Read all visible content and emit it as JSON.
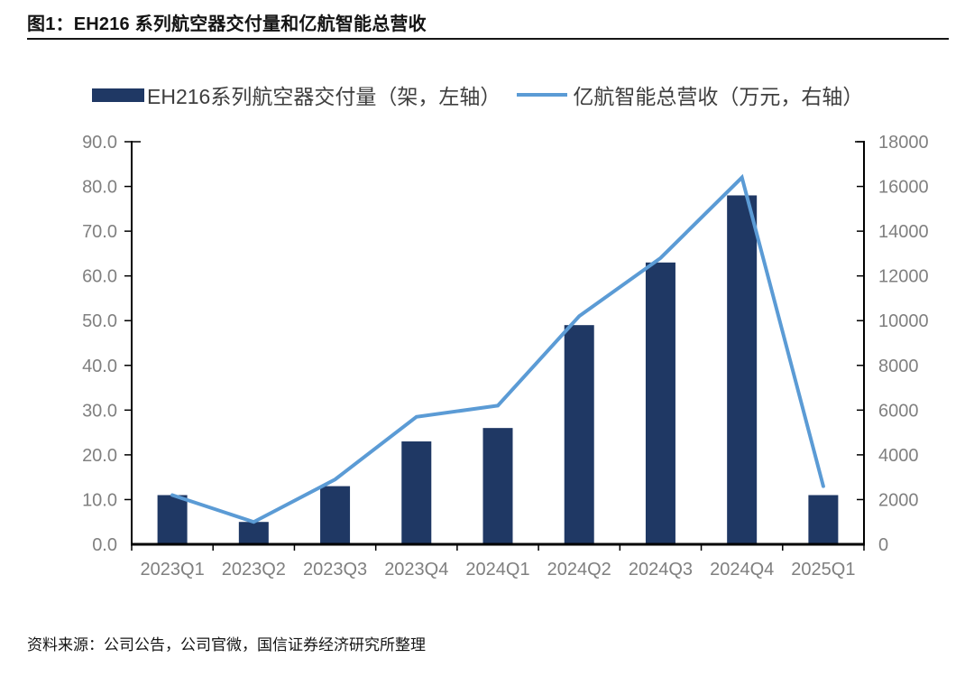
{
  "header": {
    "title": "图1：EH216 系列航空器交付量和亿航智能总营收"
  },
  "legend": {
    "bar_label": "EH216系列航空器交付量（架，左轴）",
    "line_label": "亿航智能总营收（万元，右轴）"
  },
  "chart_data": {
    "type": "bar",
    "subtype": "bar+line combo, dual axis",
    "categories": [
      "2023Q1",
      "2023Q2",
      "2023Q3",
      "2023Q4",
      "2024Q1",
      "2024Q2",
      "2024Q3",
      "2024Q4",
      "2025Q1"
    ],
    "series": [
      {
        "name": "EH216系列航空器交付量（架，左轴）",
        "type": "bar",
        "axis": "left",
        "color": "#1f3864",
        "values": [
          11,
          5,
          13,
          23,
          26,
          49,
          63,
          78,
          11
        ]
      },
      {
        "name": "亿航智能总营收（万元，右轴）",
        "type": "line",
        "axis": "right",
        "color": "#5b9bd5",
        "values": [
          2200,
          1000,
          2900,
          5700,
          6200,
          10200,
          12800,
          16400,
          2600
        ]
      }
    ],
    "left_axis": {
      "min": 0,
      "max": 90,
      "step": 10,
      "tick_labels": [
        "0.0",
        "10.0",
        "20.0",
        "30.0",
        "40.0",
        "50.0",
        "60.0",
        "70.0",
        "80.0",
        "90.0"
      ]
    },
    "right_axis": {
      "min": 0,
      "max": 18000,
      "step": 2000,
      "tick_labels": [
        "0",
        "2000",
        "4000",
        "6000",
        "8000",
        "10000",
        "12000",
        "14000",
        "16000",
        "18000"
      ]
    },
    "legend_position": "top",
    "grid": false
  },
  "footer": {
    "source": "资料来源：公司公告，公司官微，国信证券经济研究所整理"
  },
  "colors": {
    "bar": "#1f3864",
    "line": "#5b9bd5",
    "axis": "#000000",
    "tick_label": "#808080",
    "legend_text": "#3e3e3e",
    "title_text": "#141414"
  }
}
